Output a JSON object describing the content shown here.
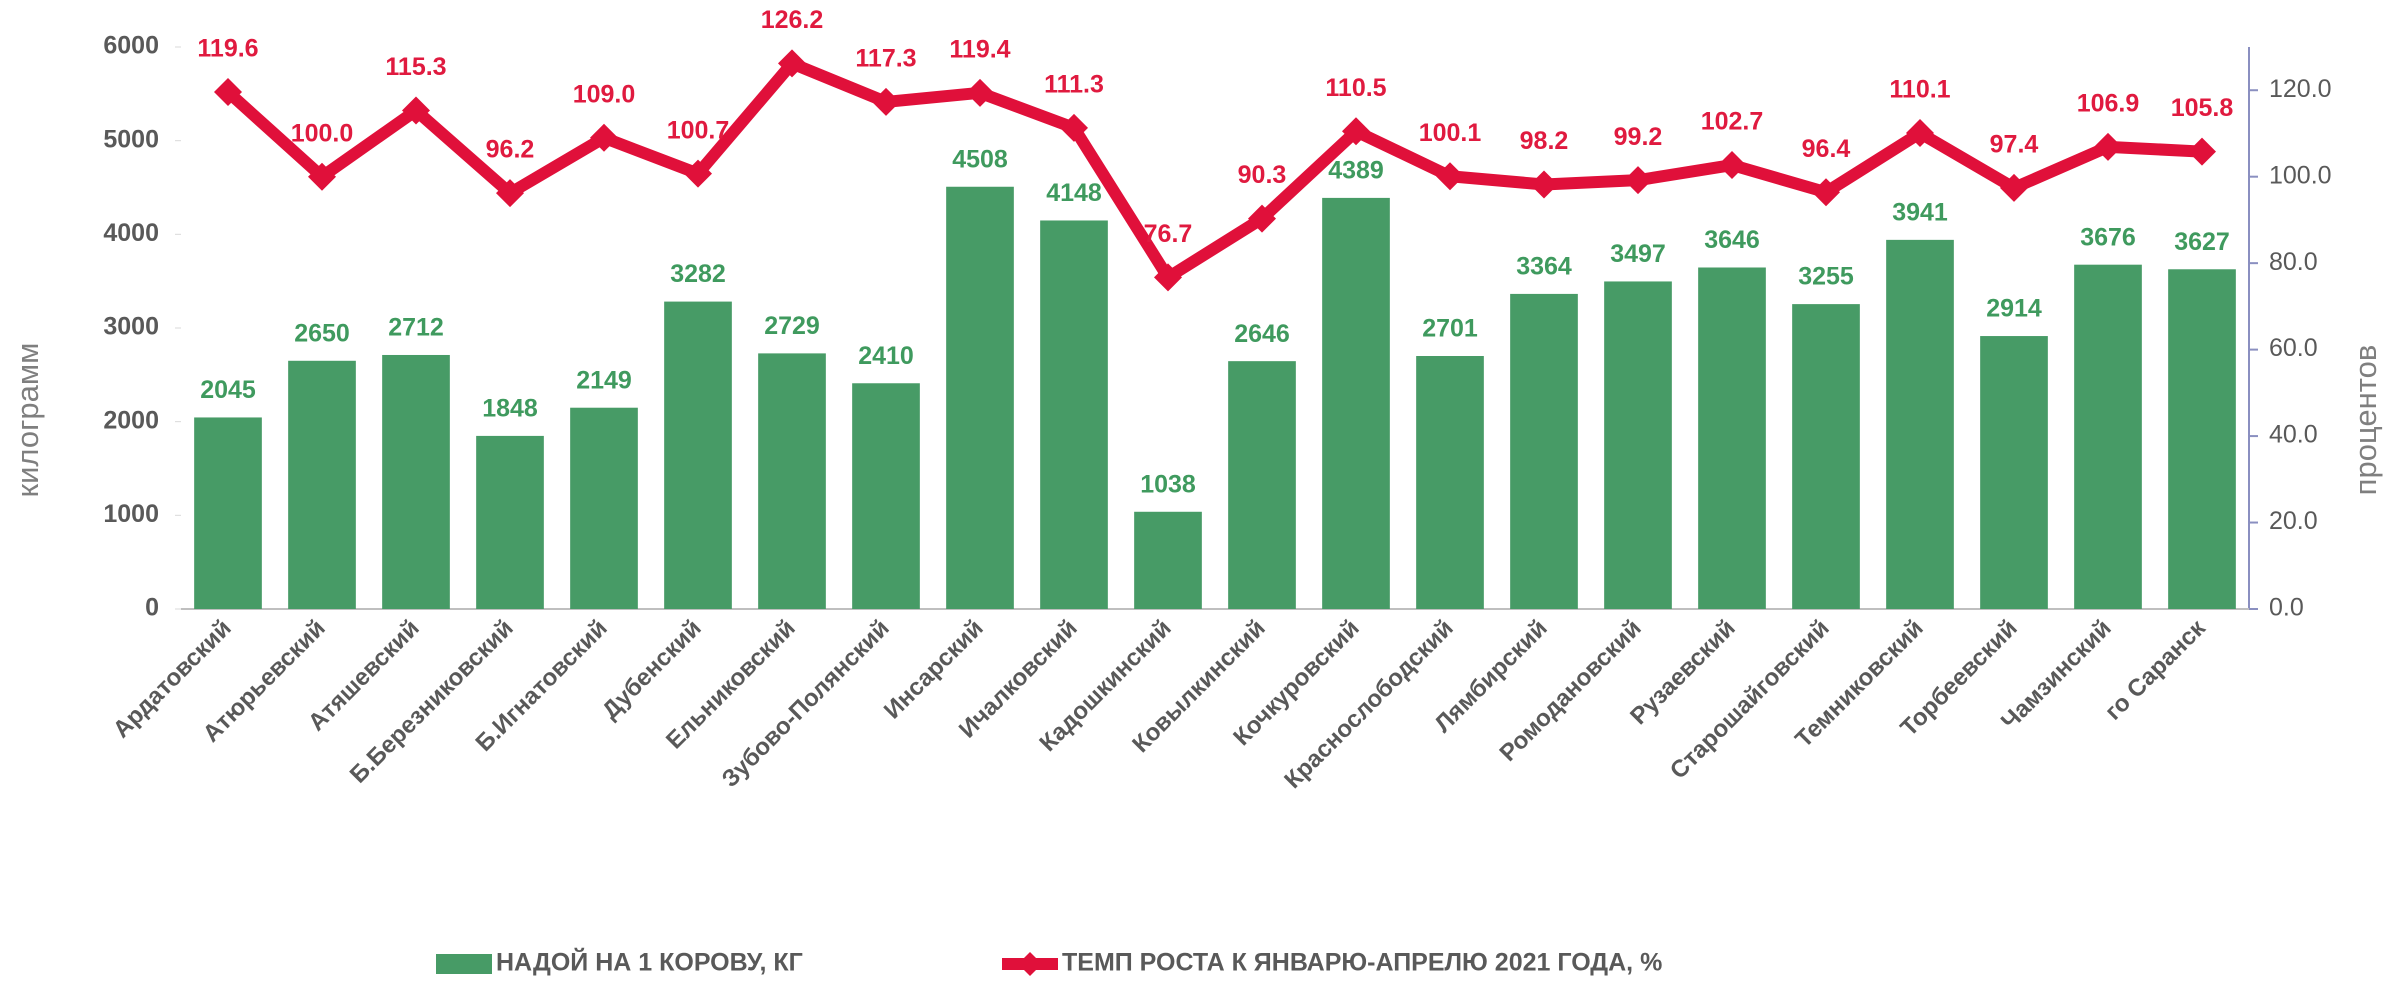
{
  "chart_data": {
    "type": "bar",
    "categories": [
      "Ардатовский",
      "Атюрьевский",
      "Атяшевский",
      "Б.Березниковский",
      "Б.Игнатовский",
      "Дубенский",
      "Ельниковский",
      "Зубово-Полянский",
      "Инсарский",
      "Ичалковский",
      "Кадошкинский",
      "Ковылкинский",
      "Кочкуровский",
      "Краснослободский",
      "Лямбирский",
      "Ромодановский",
      "Рузаевский",
      "Старошайговский",
      "Темниковский",
      "Торбеевский",
      "Чамзинский",
      "го Саранск"
    ],
    "series": [
      {
        "name": "НАДОЙ НА 1 КОРОВУ, КГ",
        "type": "bar",
        "color": "#479b66",
        "values": [
          2045,
          2650,
          2712,
          1848,
          2149,
          3282,
          2729,
          2410,
          4508,
          4148,
          1038,
          2646,
          4389,
          2701,
          3364,
          3497,
          3646,
          3255,
          3941,
          2914,
          3676,
          3627
        ]
      },
      {
        "name": "ТЕМП РОСТА К ЯНВАРЮ-АПРЕЛЮ 2021 ГОДА, %",
        "type": "line",
        "axis": "y2",
        "color": "#e0103a",
        "values": [
          119.6,
          100,
          115.3,
          96.2,
          109,
          100.7,
          126.2,
          117.3,
          119.4,
          111.3,
          76.7,
          90.3,
          110.5,
          100.1,
          98.2,
          99.2,
          102.7,
          96.4,
          110.1,
          97.4,
          106.9,
          105.8
        ],
        "value_labels": [
          "119.6",
          "100.0",
          "115.3",
          "96.2",
          "109.0",
          "100.7",
          "126.2",
          "117.3",
          "119.4",
          "111.3",
          "76.7",
          "90.3",
          "110.5",
          "100.1",
          "98.2",
          "99.2",
          "102.7",
          "96.4",
          "110.1",
          "97.4",
          "106.9",
          "105.8"
        ]
      }
    ],
    "ylabel": "килограмм",
    "y2label": "процентов",
    "ylim": [
      0,
      6000
    ],
    "yticks": [
      0,
      1000,
      2000,
      3000,
      4000,
      5000,
      6000
    ],
    "y2lim": [
      0,
      130
    ],
    "y2ticks": [
      {
        "value": 0,
        "label": "0.0"
      },
      {
        "value": 20,
        "label": "20.0"
      },
      {
        "value": 40,
        "label": "40.0"
      },
      {
        "value": 60,
        "label": "60.0"
      },
      {
        "value": 80,
        "label": "80.0"
      },
      {
        "value": 100,
        "label": "100.0"
      },
      {
        "value": 120,
        "label": "120.0"
      }
    ],
    "legend": "bottom"
  }
}
